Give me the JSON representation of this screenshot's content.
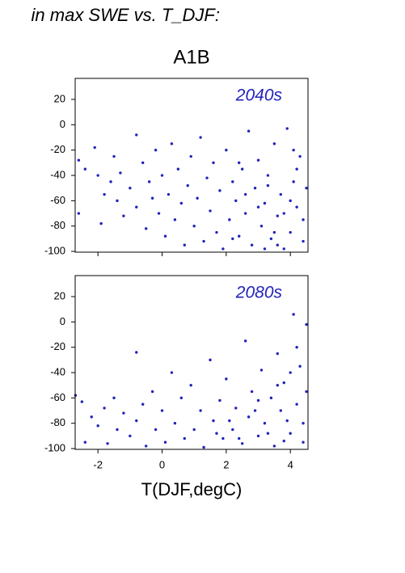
{
  "title": "in max SWE vs. T_DJF:",
  "chart_data": [
    {
      "type": "scatter",
      "title": "A1B",
      "annotation": "2040s",
      "color": "#2222bb",
      "xlim": [
        -2.71,
        4.55
      ],
      "ylim": [
        -100.6,
        36.6
      ],
      "xticks": [
        -2,
        0,
        2,
        4
      ],
      "yticks": [
        -100,
        -80,
        -60,
        -40,
        -20,
        0,
        20
      ],
      "x": [
        -2.6,
        -2.4,
        -2.6,
        -2.1,
        -2.0,
        -1.8,
        -1.9,
        -1.6,
        -1.5,
        -1.4,
        -1.3,
        -1.2,
        -1.0,
        -0.8,
        -0.8,
        -0.6,
        -0.5,
        -0.4,
        -0.3,
        -0.2,
        -0.1,
        0.0,
        0.1,
        0.2,
        0.3,
        0.4,
        0.5,
        0.6,
        0.7,
        0.8,
        0.9,
        1.0,
        1.1,
        1.2,
        1.3,
        1.4,
        1.5,
        1.6,
        1.7,
        1.8,
        1.9,
        2.0,
        2.1,
        2.2,
        2.3,
        2.4,
        2.5,
        2.6,
        2.7,
        2.8,
        2.9,
        3.0,
        3.1,
        3.2,
        3.3,
        3.4,
        3.5,
        3.6,
        3.7,
        3.8,
        3.9,
        4.0,
        4.1,
        4.2,
        4.3,
        4.4,
        4.5,
        3.2,
        3.8,
        4.2,
        2.6,
        3.5,
        4.0,
        4.4,
        2.4,
        3.0,
        3.6,
        4.1,
        2.2,
        3.3
      ],
      "values": [
        -28,
        -35,
        -70,
        -18,
        -40,
        -55,
        -78,
        -45,
        -25,
        -60,
        -38,
        -72,
        -50,
        -8,
        -65,
        -30,
        -82,
        -45,
        -58,
        -20,
        -70,
        -40,
        -88,
        -55,
        -15,
        -75,
        -35,
        -62,
        -95,
        -48,
        -25,
        -80,
        -58,
        -10,
        -92,
        -42,
        -68,
        -30,
        -85,
        -52,
        -98,
        -20,
        -75,
        -45,
        -60,
        -88,
        -35,
        -70,
        -5,
        -95,
        -50,
        -28,
        -80,
        -62,
        -40,
        -90,
        -15,
        -72,
        -55,
        -98,
        -3,
        -85,
        -45,
        -65,
        -25,
        -92,
        -50,
        -98,
        -70,
        -35,
        -55,
        -85,
        -60,
        -75,
        -30,
        -65,
        -95,
        -20,
        -90,
        -48
      ]
    },
    {
      "type": "scatter",
      "annotation": "2080s",
      "xlabel": "T(DJF,degC)",
      "color": "#2222bb",
      "xlim": [
        -2.71,
        4.55
      ],
      "ylim": [
        -100.6,
        36.6
      ],
      "xticks": [
        -2,
        0,
        2,
        4
      ],
      "yticks": [
        -100,
        -80,
        -60,
        -40,
        -20,
        0,
        20
      ],
      "x": [
        -2.7,
        -2.5,
        -2.4,
        -2.2,
        -2.0,
        -1.8,
        -1.7,
        -1.5,
        -1.4,
        -1.2,
        -1.0,
        -0.8,
        -0.8,
        -0.6,
        -0.5,
        -0.3,
        -0.2,
        0.0,
        0.1,
        0.3,
        0.4,
        0.6,
        0.7,
        0.9,
        1.0,
        1.2,
        1.3,
        1.5,
        1.6,
        1.8,
        1.9,
        2.0,
        2.2,
        2.3,
        2.5,
        2.6,
        2.7,
        2.8,
        3.0,
        3.1,
        3.2,
        3.4,
        3.5,
        3.6,
        3.7,
        3.8,
        4.0,
        4.1,
        4.2,
        4.3,
        4.4,
        4.5,
        4.5,
        3.9,
        3.3,
        2.9,
        4.2,
        3.6,
        4.0,
        2.4,
        1.7,
        3.0,
        4.4,
        3.8,
        2.1
      ],
      "values": [
        -58,
        -63,
        -95,
        -75,
        -82,
        -68,
        -96,
        -60,
        -85,
        -72,
        -90,
        -24,
        -78,
        -65,
        -98,
        -55,
        -85,
        -70,
        -95,
        -40,
        -80,
        -60,
        -92,
        -50,
        -85,
        -70,
        -99,
        -30,
        -78,
        -62,
        -92,
        -45,
        -85,
        -68,
        -96,
        -15,
        -75,
        -55,
        -90,
        -38,
        -80,
        -60,
        -98,
        -25,
        -70,
        -48,
        -88,
        6,
        -65,
        -35,
        -95,
        -55,
        -2,
        -78,
        -88,
        -70,
        -20,
        -50,
        -40,
        -92,
        -88,
        -62,
        -80,
        -94,
        -78
      ]
    }
  ]
}
